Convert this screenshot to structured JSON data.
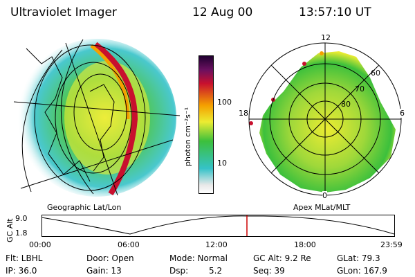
{
  "header": {
    "instrument": "Ultraviolet Imager",
    "date": "12 Aug 00",
    "time": "13:57:10 UT"
  },
  "colorbar": {
    "unit_label": "photon cm⁻²s⁻¹",
    "ticks": [
      "100",
      "10"
    ]
  },
  "panels": {
    "left_caption": "Geographic Lat/Lon",
    "right_caption": "Apex MLat/MLT"
  },
  "polar_plot": {
    "mlt_labels": {
      "top": "12",
      "left": "18",
      "right": "6",
      "bottom": "0"
    },
    "lat_rings": [
      "60",
      "70",
      "80"
    ]
  },
  "altitude_strip": {
    "ylabel": "GC Alt",
    "y_ticks": [
      "9.0",
      "1.8"
    ],
    "x_ticks": [
      "00:00",
      "06:00",
      "12:00",
      "18:00",
      "23:59"
    ],
    "marker_time": "13:57",
    "marker_color": "#cc0000"
  },
  "info": {
    "filter": "Flt: LBHL",
    "door": "Door: Open",
    "mode": "Mode: Normal",
    "gc_alt": "GC Alt: 9.2 Re",
    "glat": "GLat: 79.3",
    "ip": "IP: 36.0",
    "gain": "Gain: 13",
    "dsp_label": "Dsp:",
    "dsp_value": "5.2",
    "seq": "Seq: 39",
    "glon": "GLon: 167.9"
  },
  "colors": {
    "low": "#e8e8e8",
    "cyan": "#35c2c8",
    "green": "#3cc03c",
    "yellow": "#ecec32",
    "orange": "#f5a000",
    "red": "#c8102e",
    "dark": "#200030"
  }
}
